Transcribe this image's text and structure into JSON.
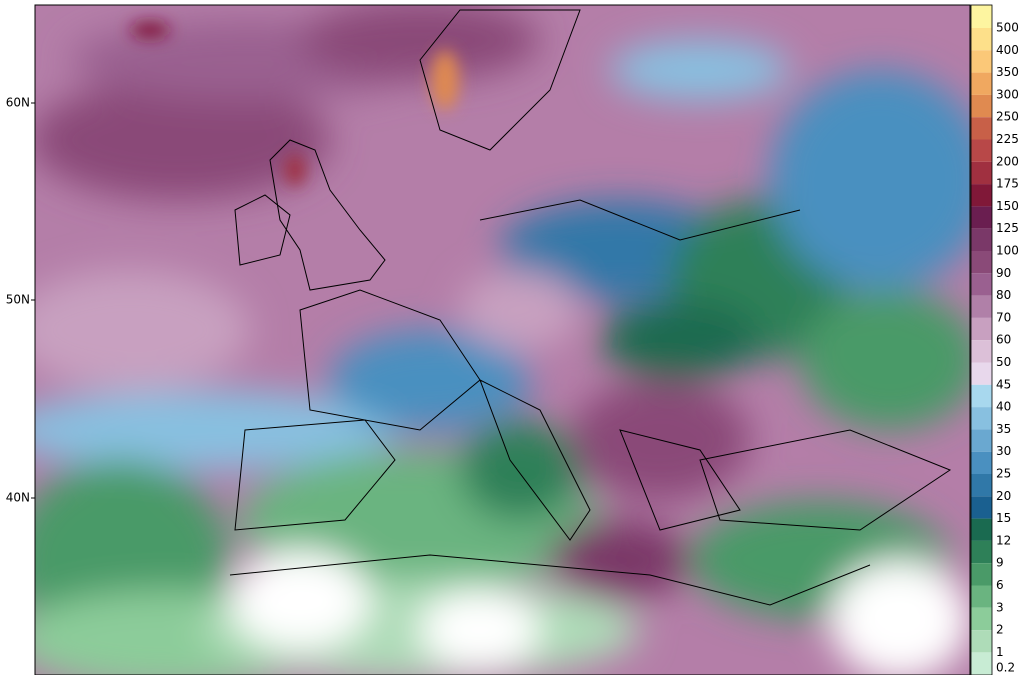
{
  "map": {
    "latitude_labels": [
      "60N",
      "50N",
      "40N"
    ],
    "legend": {
      "levels": [
        500,
        400,
        350,
        300,
        250,
        225,
        200,
        175,
        150,
        125,
        100,
        90,
        80,
        70,
        60,
        50,
        45,
        40,
        35,
        30,
        25,
        20,
        15,
        12,
        9,
        6,
        3,
        2,
        1,
        0.2
      ],
      "colors": [
        "#fdf5a0",
        "#fde08a",
        "#fbc878",
        "#f0a860",
        "#e08a50",
        "#c86048",
        "#b84848",
        "#a03040",
        "#801838",
        "#6a1e50",
        "#7a3868",
        "#8a4a78",
        "#9a6090",
        "#b080a8",
        "#c8a0c0",
        "#dcc0d8",
        "#e8d8ec",
        "#a8d8ee",
        "#88c0e0",
        "#6aa8d0",
        "#4a90c0",
        "#3078a8",
        "#1a6090",
        "#1a6a50",
        "#2e8058",
        "#4a9a68",
        "#6ab480",
        "#8ccc9a",
        "#aedcb8",
        "#c8ecd4"
      ]
    }
  }
}
